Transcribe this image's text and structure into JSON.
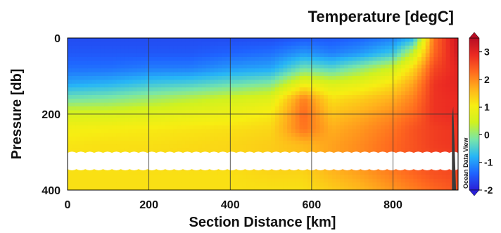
{
  "chart_data": {
    "type": "heatmap",
    "title": "Temperature [degC]",
    "xlabel": "Section Distance [km]",
    "ylabel": "Pressure [db]",
    "xlim": [
      0,
      960
    ],
    "ylim": [
      400,
      0
    ],
    "xticks": [
      0,
      200,
      400,
      600,
      800
    ],
    "yticks": [
      0,
      200,
      400
    ],
    "grid": true,
    "colorbar": {
      "ticks": [
        3,
        2,
        1,
        0,
        -1,
        -2
      ],
      "range": [
        -2,
        3.5
      ],
      "watermark": "Ocean Data View"
    },
    "colors": [
      "#2a1fd8",
      "#1f64ff",
      "#27b6f6",
      "#78e6a9",
      "#cff21f",
      "#f7ee12",
      "#ffb21c",
      "#ff6a1f",
      "#eb2a22",
      "#b80d24"
    ],
    "columns": [
      {
        "x": 0,
        "t": [
          -1.6,
          -1.5,
          -1.3,
          -0.9,
          -0.2,
          0.6,
          1.0,
          1.15,
          1.2,
          1.2,
          1.2
        ]
      },
      {
        "x": 100,
        "t": [
          -1.6,
          -1.5,
          -1.3,
          -0.8,
          -0.1,
          0.6,
          1.05,
          1.2,
          1.2,
          1.2,
          1.2
        ]
      },
      {
        "x": 200,
        "t": [
          -1.6,
          -1.5,
          -1.2,
          -0.6,
          0.1,
          0.7,
          1.1,
          1.2,
          1.25,
          1.2,
          1.2
        ]
      },
      {
        "x": 300,
        "t": [
          -1.6,
          -1.5,
          -1.2,
          -0.5,
          0.3,
          0.8,
          1.15,
          1.25,
          1.3,
          1.2,
          1.2
        ]
      },
      {
        "x": 400,
        "t": [
          -1.6,
          -1.4,
          -1.0,
          -0.3,
          0.5,
          0.9,
          1.2,
          1.3,
          1.3,
          1.2,
          1.2
        ]
      },
      {
        "x": 500,
        "t": [
          -1.6,
          -1.3,
          -0.9,
          -0.1,
          0.7,
          1.1,
          1.3,
          1.4,
          1.4,
          1.3,
          1.2
        ]
      },
      {
        "x": 580,
        "t": [
          -1.5,
          -1.0,
          -0.2,
          0.9,
          2.1,
          2.3,
          2.2,
          1.6,
          1.5,
          1.3,
          1.2
        ]
      },
      {
        "x": 650,
        "t": [
          -1.5,
          -1.2,
          -0.4,
          0.6,
          1.2,
          1.5,
          1.7,
          1.8,
          1.8,
          1.6,
          1.4
        ]
      },
      {
        "x": 720,
        "t": [
          -1.4,
          -1.0,
          0.0,
          0.8,
          1.4,
          1.7,
          1.9,
          2.0,
          2.0,
          1.8,
          1.6
        ]
      },
      {
        "x": 800,
        "t": [
          -1.2,
          -0.6,
          0.5,
          1.2,
          1.7,
          2.0,
          2.2,
          2.3,
          2.3,
          2.1,
          1.9
        ]
      },
      {
        "x": 850,
        "t": [
          -0.8,
          0.4,
          1.3,
          1.8,
          2.1,
          2.3,
          2.5,
          2.5,
          2.5,
          2.3,
          2.1
        ]
      },
      {
        "x": 900,
        "t": [
          2.2,
          2.3,
          2.6,
          2.8,
          2.8,
          2.8,
          2.7,
          2.7,
          2.6,
          2.5,
          2.3
        ]
      },
      {
        "x": 960,
        "t": [
          3.3,
          3.2,
          3.0,
          3.0,
          2.9,
          2.9,
          2.8,
          2.8,
          2.7,
          2.6,
          2.5
        ]
      }
    ],
    "depths": [
      0,
      40,
      80,
      120,
      160,
      200,
      240,
      280,
      320,
      360,
      400
    ],
    "no_data_band": {
      "pressure": [
        302,
        345
      ]
    },
    "bathymetry": [
      [
        945,
        400
      ],
      [
        945,
        300
      ],
      [
        945,
        210
      ],
      [
        948,
        180
      ],
      [
        955,
        400
      ]
    ]
  }
}
